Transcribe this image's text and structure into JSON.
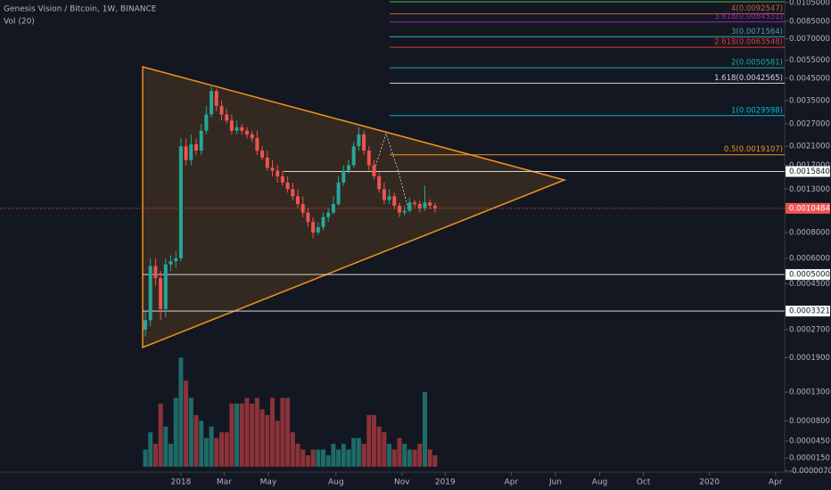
{
  "chart_data": {
    "type": "candlestick",
    "title": "Genesis Vision / Bitcoin, 1W, BINANCE",
    "volume_title": "Vol (20)",
    "log_scale": true,
    "up_color": "#26a69a",
    "down_color": "#ef5350",
    "volume_up_color": "#1f6b68",
    "volume_down_color": "#8c3339",
    "open": [
      0.00027,
      0.0003,
      0.00055,
      0.00048,
      0.00034,
      0.00056,
      0.00058,
      0.0006,
      0.0021,
      0.0018,
      0.00215,
      0.002,
      0.0025,
      0.003,
      0.0039,
      0.0033,
      0.003,
      0.0028,
      0.0025,
      0.0026,
      0.0025,
      0.0024,
      0.0023,
      0.002,
      0.00185,
      0.00165,
      0.0016,
      0.0015,
      0.0014,
      0.0013,
      0.0012,
      0.0011,
      0.001,
      0.0009,
      0.0008,
      0.00085,
      0.00095,
      0.001,
      0.0011,
      0.0014,
      0.0016,
      0.0017,
      0.0021,
      0.0024,
      0.002,
      0.0017,
      0.0015,
      0.0013,
      0.00115,
      0.0012,
      0.00108,
      0.001,
      0.00102,
      0.00112,
      0.0011,
      0.00105,
      0.00112,
      0.00108
    ],
    "high": [
      0.00033,
      0.0006,
      0.0006,
      0.00052,
      0.0006,
      0.00062,
      0.00065,
      0.0023,
      0.0023,
      0.0024,
      0.0023,
      0.0027,
      0.0033,
      0.0041,
      0.004,
      0.0035,
      0.0032,
      0.003,
      0.0028,
      0.0027,
      0.0026,
      0.0025,
      0.0025,
      0.0021,
      0.002,
      0.0018,
      0.0017,
      0.0016,
      0.0015,
      0.0014,
      0.0013,
      0.0012,
      0.00105,
      0.00095,
      0.0009,
      0.001,
      0.00105,
      0.0012,
      0.0015,
      0.0017,
      0.0018,
      0.0022,
      0.0026,
      0.0025,
      0.0021,
      0.0018,
      0.0016,
      0.0014,
      0.0013,
      0.00125,
      0.00112,
      0.00108,
      0.00118,
      0.00115,
      0.00114,
      0.00135,
      0.00116,
      0.00112
    ],
    "low": [
      0.00025,
      0.00028,
      0.00044,
      0.0003,
      0.00031,
      0.00052,
      0.00054,
      0.00058,
      0.0017,
      0.0017,
      0.0019,
      0.0019,
      0.0024,
      0.0029,
      0.0031,
      0.0028,
      0.0027,
      0.0024,
      0.0024,
      0.0024,
      0.0023,
      0.0022,
      0.0019,
      0.0018,
      0.0016,
      0.0015,
      0.0014,
      0.00135,
      0.00125,
      0.00115,
      0.00105,
      0.00095,
      0.00085,
      0.00075,
      0.00078,
      0.00082,
      0.0009,
      0.00098,
      0.00108,
      0.00135,
      0.00155,
      0.00165,
      0.002,
      0.0019,
      0.0016,
      0.00145,
      0.00125,
      0.0011,
      0.0011,
      0.00104,
      0.00095,
      0.00097,
      0.001,
      0.00106,
      0.001,
      0.00102,
      0.00104,
      0.001
    ],
    "close": [
      0.0003,
      0.00055,
      0.00048,
      0.00034,
      0.00056,
      0.00058,
      0.0006,
      0.0021,
      0.0018,
      0.00215,
      0.002,
      0.0025,
      0.003,
      0.0039,
      0.0033,
      0.003,
      0.0028,
      0.0025,
      0.0026,
      0.0025,
      0.0024,
      0.0023,
      0.002,
      0.00185,
      0.00165,
      0.0016,
      0.0015,
      0.0014,
      0.0013,
      0.0012,
      0.0011,
      0.001,
      0.0009,
      0.0008,
      0.00085,
      0.00095,
      0.001,
      0.0011,
      0.0014,
      0.0016,
      0.0017,
      0.0021,
      0.0024,
      0.002,
      0.0017,
      0.0015,
      0.0013,
      0.00115,
      0.0012,
      0.00108,
      0.001,
      0.00102,
      0.00112,
      0.0011,
      0.00105,
      0.00112,
      0.00108,
      0.0010484
    ],
    "volume": [
      3e-05,
      6e-05,
      4e-05,
      0.00011,
      7e-05,
      4e-05,
      0.00012,
      0.00019,
      0.00015,
      0.00012,
      9e-05,
      8e-05,
      5e-05,
      7e-05,
      5e-05,
      6e-05,
      6e-05,
      0.00011,
      0.00011,
      0.00011,
      0.00012,
      0.00011,
      0.00012,
      0.0001,
      9e-05,
      0.00012,
      8e-05,
      0.00012,
      0.00012,
      6e-05,
      4e-05,
      3e-05,
      2e-05,
      3e-05,
      3e-05,
      3e-05,
      2e-05,
      4e-05,
      3e-05,
      4e-05,
      3e-05,
      5e-05,
      5e-05,
      4e-05,
      9e-05,
      9e-05,
      7e-05,
      6e-05,
      4e-05,
      3e-05,
      5e-05,
      4e-05,
      3e-05,
      3e-05,
      4e-05,
      0.00013,
      3e-05,
      2e-05
    ],
    "xticks": [
      {
        "value": 7,
        "label": "2018"
      },
      {
        "value": 15.5,
        "label": "Mar"
      },
      {
        "value": 24.2,
        "label": "May"
      },
      {
        "value": 37.5,
        "label": "Aug"
      },
      {
        "value": 50.5,
        "label": "Nov"
      },
      {
        "value": 59,
        "label": "2019"
      },
      {
        "value": 72,
        "label": "Apr"
      },
      {
        "value": 80.7,
        "label": "Jun"
      },
      {
        "value": 89.4,
        "label": "Aug"
      },
      {
        "value": 98,
        "label": "Oct"
      },
      {
        "value": 111,
        "label": "2020"
      },
      {
        "value": 124,
        "label": "Apr"
      }
    ],
    "ylim": [
      0.000221,
      0.0108
    ],
    "yticks": [
      {
        "value": 0.0105,
        "label": "0.0105000"
      },
      {
        "value": 0.0085,
        "label": "0.0085000"
      },
      {
        "value": 0.007,
        "label": "0.0070000"
      },
      {
        "value": 0.0055,
        "label": "0.0055000"
      },
      {
        "value": 0.0045,
        "label": "0.0045000"
      },
      {
        "value": 0.0035,
        "label": "0.0035000"
      },
      {
        "value": 0.0027,
        "label": "0.0027000"
      },
      {
        "value": 0.0021,
        "label": "0.0021000"
      },
      {
        "value": 0.0017,
        "label": "0.0017000"
      },
      {
        "value": 0.0013,
        "label": "0.0013000"
      },
      {
        "value": 0.0008,
        "label": "0.0008000"
      },
      {
        "value": 0.0006,
        "label": "0.0006000"
      },
      {
        "value": 0.00045,
        "label": "0.0004500"
      },
      {
        "value": 0.00027,
        "label": "0.0002700"
      }
    ],
    "volume_lim": [
      -9.5e-06,
      0.0002
    ],
    "volume_ticks": [
      {
        "value": 0.00019,
        "label": "0.0001900"
      },
      {
        "value": 0.00013,
        "label": "0.0001300"
      },
      {
        "value": 8e-05,
        "label": "0.0000800"
      },
      {
        "value": 4.5e-05,
        "label": "0.0000450"
      },
      {
        "value": 1.5e-05,
        "label": "0.0000150"
      },
      {
        "value": -7e-06,
        "label": "-0.0000070"
      }
    ],
    "fib_levels": [
      {
        "value": 0.0092547,
        "label": "4(0.0092547)",
        "color": "#c0603a"
      },
      {
        "value": 0.0084531,
        "label": "3.618(0.0084531)",
        "color": "#9c27b0"
      },
      {
        "value": 0.0071564,
        "label": "3(0.0071564)",
        "color": "#4aa3a8"
      },
      {
        "value": 0.0063548,
        "label": "2.618(0.0063548)",
        "color": "#e53935"
      },
      {
        "value": 0.0050581,
        "label": "2(0.0050581)",
        "color": "#26a69a"
      },
      {
        "value": 0.0042565,
        "label": "1.618(0.0042565)",
        "color": "#d1d4dc"
      },
      {
        "value": 0.0029598,
        "label": "1(0.0029598)",
        "color": "#00bcd4"
      },
      {
        "value": 0.0019107,
        "label": "0.5(0.0019107)",
        "color": "#f0931e"
      }
    ],
    "price_lines": [
      {
        "value": 0.001584,
        "label": "0.0015840"
      },
      {
        "value": 0.0005,
        "label": "0.0005000"
      },
      {
        "value": 0.0003321,
        "label": "0.0003321"
      }
    ],
    "current_price": {
      "value": 0.0010484,
      "label": "0.0010484",
      "color": "#ef5350"
    }
  }
}
